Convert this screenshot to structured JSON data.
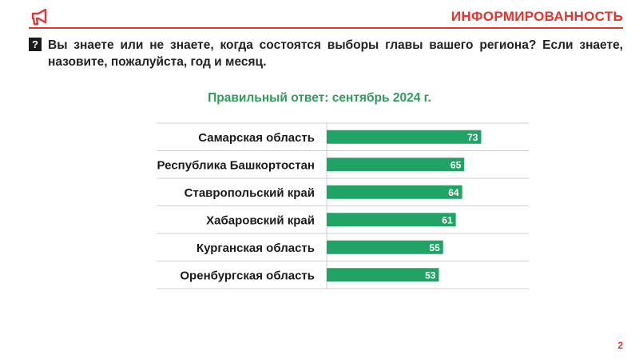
{
  "header": {
    "section_title": "ИНФОРМИРОВАННОСТЬ",
    "logo_icon": "megaphone-icon",
    "accent_color": "#e8332e"
  },
  "question": {
    "marker": "?",
    "text": "Вы знаете или не знаете, когда состоятся выборы главы вашего региона? Если знаете, назовите, пожалуйста, год и месяц."
  },
  "subtitle": "Правильный ответ: сентябрь 2024 г.",
  "chart_data": {
    "type": "bar",
    "orientation": "horizontal",
    "categories": [
      "Самарская область",
      "Республика Башкортостан",
      "Ставропольский край",
      "Хабаровский край",
      "Курганская область",
      "Оренбургская область"
    ],
    "values": [
      73,
      65,
      64,
      61,
      55,
      53
    ],
    "xlim": [
      0,
      100
    ],
    "grid": false,
    "bar_color": "#21a366",
    "label_color": "#ffffff"
  },
  "page_number": "2"
}
